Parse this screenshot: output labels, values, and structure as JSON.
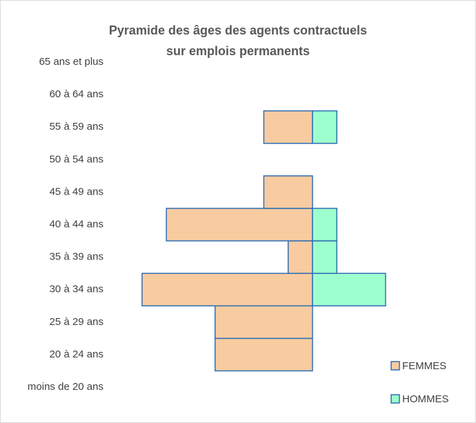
{
  "chart_data": {
    "type": "pyramid",
    "title": "Pyramide des âges des agents contractuels sur emplois permanents",
    "categories": [
      "moins de 20 ans",
      "20 à 24 ans",
      "25 à 29 ans",
      "30 à 34 ans",
      "35 à 39 ans",
      "40 à 44 ans",
      "45 à 49 ans",
      "50 à 54 ans",
      "55 à 59 ans",
      "60 à 64 ans",
      "65 ans et plus"
    ],
    "series": [
      {
        "name": "FEMMES",
        "color": "#f8cba0",
        "side": "left",
        "values": [
          0,
          4,
          4,
          7,
          1,
          6,
          2,
          0,
          2,
          0,
          0
        ]
      },
      {
        "name": "HOMMES",
        "color": "#9effce",
        "side": "right",
        "values": [
          0,
          0,
          0,
          3,
          1,
          1,
          0,
          0,
          1,
          0,
          0
        ]
      }
    ],
    "bar_stroke": "#2e6eb5",
    "legend": "bottom-right"
  }
}
